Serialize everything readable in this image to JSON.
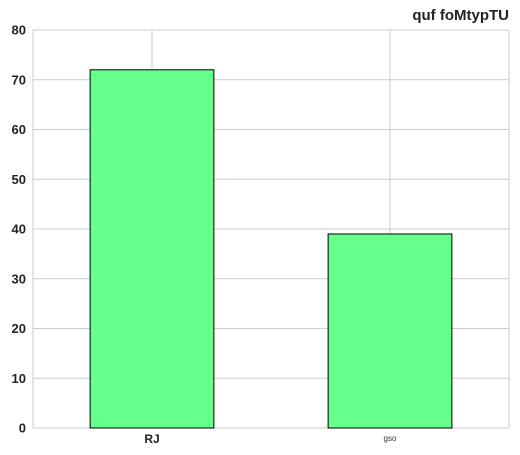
{
  "chart_data": {
    "type": "bar",
    "title": "quf foMtypTU",
    "xlabel": "",
    "ylabel": "",
    "categories": [
      "RJ",
      "gso"
    ],
    "values": [
      72,
      39
    ],
    "ylim": [
      0,
      80
    ],
    "yticks": [
      0,
      10,
      20,
      30,
      40,
      50,
      60,
      70,
      80
    ],
    "grid": true,
    "legend": "none",
    "colors": {
      "bar_fill": "#66ff8c",
      "bar_edge": "#000000",
      "grid": "#cccccc",
      "axes_edge": "#cccccc",
      "text": "#222222"
    }
  }
}
